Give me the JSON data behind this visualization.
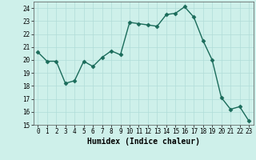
{
  "x": [
    0,
    1,
    2,
    3,
    4,
    5,
    6,
    7,
    8,
    9,
    10,
    11,
    12,
    13,
    14,
    15,
    16,
    17,
    18,
    19,
    20,
    21,
    22,
    23
  ],
  "y": [
    20.6,
    19.9,
    19.9,
    18.2,
    18.4,
    19.9,
    19.5,
    20.2,
    20.7,
    20.4,
    22.9,
    22.8,
    22.7,
    22.6,
    23.5,
    23.6,
    24.1,
    23.3,
    21.5,
    20.0,
    17.1,
    16.2,
    16.4,
    15.3
  ],
  "line_color": "#1a6b5a",
  "marker_color": "#1a6b5a",
  "bg_color": "#cef0ea",
  "grid_color": "#b0ddd8",
  "xlabel": "Humidex (Indice chaleur)",
  "ylim": [
    15,
    24.5
  ],
  "xlim": [
    -0.5,
    23.5
  ],
  "yticks": [
    15,
    16,
    17,
    18,
    19,
    20,
    21,
    22,
    23,
    24
  ],
  "xticks": [
    0,
    1,
    2,
    3,
    4,
    5,
    6,
    7,
    8,
    9,
    10,
    11,
    12,
    13,
    14,
    15,
    16,
    17,
    18,
    19,
    20,
    21,
    22,
    23
  ],
  "tick_fontsize": 5.5,
  "label_fontsize": 7,
  "line_width": 1.0,
  "marker_size": 2.5
}
